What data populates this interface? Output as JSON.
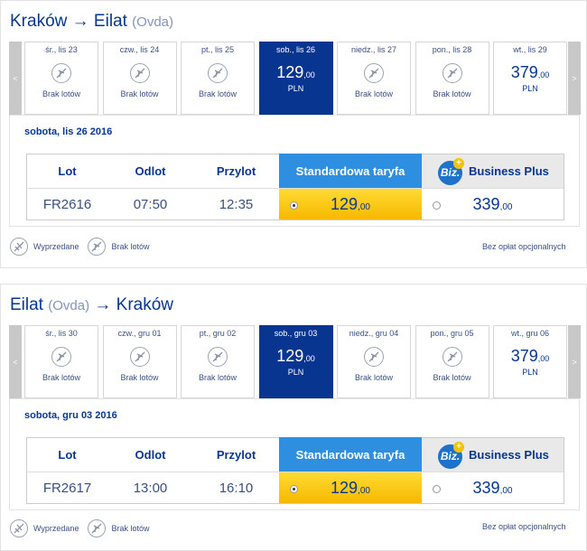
{
  "outbound": {
    "title_from": "Kraków",
    "title_arrow": "→",
    "title_to": "Eilat",
    "title_to_sub": "(Ovda)",
    "days": [
      {
        "label": "śr., lis 23",
        "status": "Brak lotów"
      },
      {
        "label": "czw., lis 24",
        "status": "Brak lotów"
      },
      {
        "label": "pt., lis 25",
        "status": "Brak lotów"
      },
      {
        "label": "sob., lis 26",
        "price": "129",
        "price_dec": ",00",
        "currency": "PLN",
        "selected": true
      },
      {
        "label": "niedz., lis 27",
        "status": "Brak lotów"
      },
      {
        "label": "pon., lis 28",
        "status": "Brak lotów"
      },
      {
        "label": "wt., lis 29",
        "price": "379",
        "price_dec": ",00",
        "currency": "PLN"
      }
    ],
    "date_line": "sobota, lis 26 2016",
    "flight": {
      "number": "FR2616",
      "depart": "07:50",
      "arrive": "12:35",
      "std_price": "129",
      "std_dec": ",00",
      "biz_price": "339",
      "biz_dec": ",00"
    }
  },
  "inbound": {
    "title_from": "Eilat",
    "title_from_sub": "(Ovda)",
    "title_arrow": "→",
    "title_to": "Kraków",
    "days": [
      {
        "label": "śr., lis 30",
        "status": "Brak lotów"
      },
      {
        "label": "czw., gru 01",
        "status": "Brak lotów"
      },
      {
        "label": "pt., gru 02",
        "status": "Brak lotów"
      },
      {
        "label": "sob., gru 03",
        "price": "129",
        "price_dec": ",00",
        "currency": "PLN",
        "selected": true
      },
      {
        "label": "niedz., gru 04",
        "status": "Brak lotów"
      },
      {
        "label": "pon., gru 05",
        "status": "Brak lotów"
      },
      {
        "label": "wt., gru 06",
        "price": "379",
        "price_dec": ",00",
        "currency": "PLN"
      }
    ],
    "date_line": "sobota, gru 03 2016",
    "flight": {
      "number": "FR2617",
      "depart": "13:00",
      "arrive": "16:10",
      "std_price": "129",
      "std_dec": ",00",
      "biz_price": "339",
      "biz_dec": ",00"
    }
  },
  "table_headers": {
    "lot": "Lot",
    "odlot": "Odlot",
    "przylot": "Przylot",
    "standard": "Standardowa taryfa",
    "biz_logo": "Biz.",
    "biz_plus": "+",
    "business": "Business Plus"
  },
  "nav": {
    "prev": "<",
    "next": ">"
  },
  "legend": {
    "sold_out": "Wyprzedane",
    "no_flights": "Brak lotów",
    "note": "Bez opłat opcjonalnych"
  },
  "colors": {
    "brand": "#073590",
    "selected_day": "#073590",
    "standard_header": "#2e8ee0",
    "standard_cell": "#f6b800"
  }
}
